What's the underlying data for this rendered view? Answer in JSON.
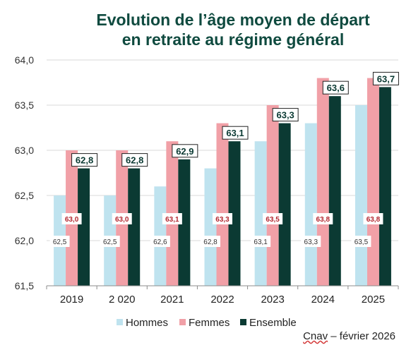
{
  "title": {
    "line1": "Evolution de l’âge moyen de départ",
    "line2": "en retraite au régime général"
  },
  "source": {
    "prefix": "Cnav",
    "rest": " – février 2026"
  },
  "colors": {
    "title": "#0f4a3f",
    "hommes": "#bfe3ef",
    "femmes": "#f1a0a7",
    "ensemble": "#0b3a33",
    "femmes_label": "#b3262f",
    "axis": "#333333"
  },
  "chart_data": {
    "type": "bar",
    "categories": [
      "2019",
      "2 020",
      "2021",
      "2022",
      "2023",
      "2024",
      "2025"
    ],
    "ylim": [
      61.5,
      64.0
    ],
    "yticks": [
      "61,5",
      "62,0",
      "62,5",
      "63,0",
      "63,5",
      "64,0"
    ],
    "ytick_values": [
      61.5,
      62.0,
      62.5,
      63.0,
      63.5,
      64.0
    ],
    "grid": true,
    "legend_position": "bottom",
    "series": [
      {
        "name": "Hommes",
        "values": [
          62.5,
          62.5,
          62.6,
          62.8,
          63.1,
          63.3,
          63.5
        ],
        "labels": [
          "62,5",
          "62,5",
          "62,6",
          "62,8",
          "63,1",
          "63,3",
          "63,5"
        ]
      },
      {
        "name": "Femmes",
        "values": [
          63.0,
          63.0,
          63.1,
          63.3,
          63.5,
          63.8,
          63.8
        ],
        "labels": [
          "63,0",
          "63,0",
          "63,1",
          "63,3",
          "63,5",
          "63,8",
          "63,8"
        ]
      },
      {
        "name": "Ensemble",
        "values": [
          62.8,
          62.8,
          62.9,
          63.1,
          63.3,
          63.6,
          63.7
        ],
        "labels": [
          "62,8",
          "62,8",
          "62,9",
          "63,1",
          "63,3",
          "63,6",
          "63,7"
        ]
      }
    ]
  }
}
